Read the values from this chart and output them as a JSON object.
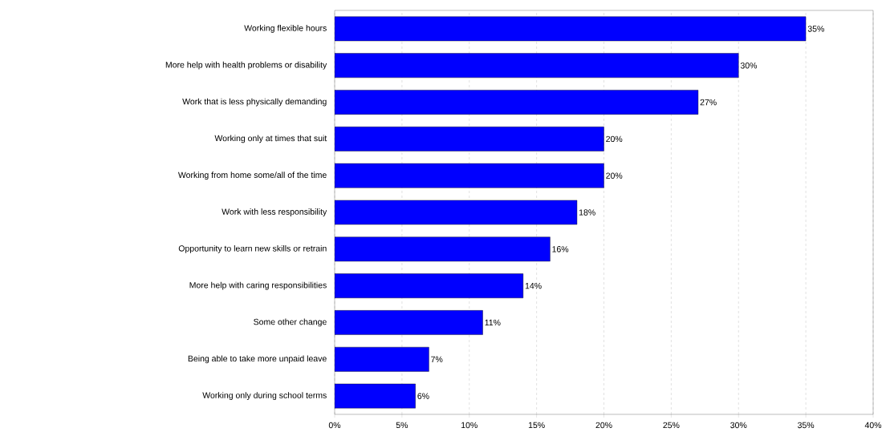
{
  "chart_data": {
    "type": "bar",
    "orientation": "horizontal",
    "categories": [
      "Working flexible hours",
      "More help with health problems or disability",
      "Work that is less physically demanding",
      "Working only at times that suit",
      "Working from home some/all of the time",
      "Work with less responsibility",
      "Opportunity to learn new skills or retrain",
      "More help with caring responsibilities",
      "Some other change",
      "Being able to take more unpaid leave",
      "Working only during school terms"
    ],
    "values": [
      35,
      30,
      27,
      20,
      20,
      18,
      16,
      14,
      11,
      7,
      6
    ],
    "value_labels": [
      "35%",
      "30%",
      "27%",
      "20%",
      "20%",
      "18%",
      "16%",
      "14%",
      "11%",
      "7%",
      "6%"
    ],
    "color": "#0000ff",
    "xlim": [
      0,
      40
    ],
    "xticks": [
      {
        "value": 0,
        "label": "0%"
      },
      {
        "value": 5,
        "label": "5%"
      },
      {
        "value": 10,
        "label": "10%"
      },
      {
        "value": 15,
        "label": "15%"
      },
      {
        "value": 20,
        "label": "20%"
      },
      {
        "value": 25,
        "label": "25%"
      },
      {
        "value": 30,
        "label": "30%"
      },
      {
        "value": 35,
        "label": "35%"
      },
      {
        "value": 40,
        "label": "40%"
      }
    ],
    "grid": "x"
  }
}
